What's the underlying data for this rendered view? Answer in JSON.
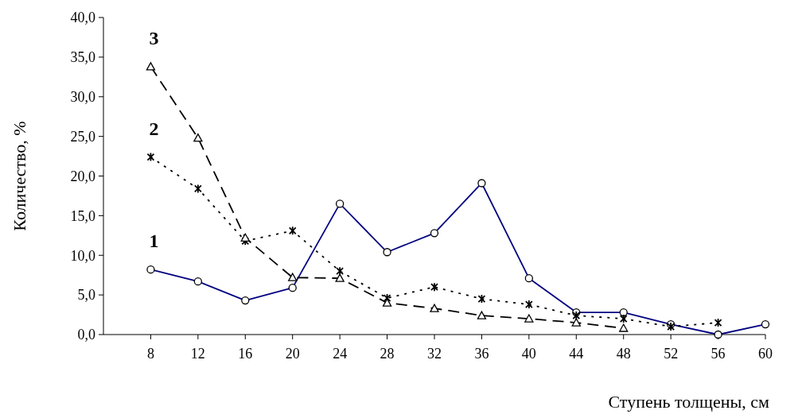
{
  "chart_data": {
    "type": "line",
    "xlabel": "Ступень толщены, см",
    "ylabel": "Количество, %",
    "x": [
      8,
      12,
      16,
      20,
      24,
      28,
      32,
      36,
      40,
      44,
      48,
      52,
      56,
      60
    ],
    "xlim": [
      4,
      60
    ],
    "xticks": [
      8,
      12,
      16,
      20,
      24,
      28,
      32,
      36,
      40,
      44,
      48,
      52,
      56,
      60
    ],
    "ylim": [
      0,
      40
    ],
    "yticks": [
      {
        "value": 0,
        "label": "0,0"
      },
      {
        "value": 5,
        "label": "5,0"
      },
      {
        "value": 10,
        "label": "10,0"
      },
      {
        "value": 15,
        "label": "15,0"
      },
      {
        "value": 20,
        "label": "20,0"
      },
      {
        "value": 25,
        "label": "25,0"
      },
      {
        "value": 30,
        "label": "30,0"
      },
      {
        "value": 35,
        "label": "35,0"
      },
      {
        "value": 40,
        "label": "40,0"
      }
    ],
    "grid": false,
    "series": [
      {
        "name": "1",
        "color": "#000080",
        "marker": "circle",
        "line_style": "solid",
        "values": [
          8.2,
          6.7,
          4.3,
          5.9,
          16.5,
          10.4,
          12.8,
          19.1,
          7.1,
          2.8,
          2.8,
          1.3,
          0,
          1.3
        ]
      },
      {
        "name": "2",
        "color": "#000000",
        "marker": "cross",
        "line_style": "dotted",
        "values": [
          22.4,
          18.4,
          11.8,
          13.1,
          8.0,
          4.6,
          6.0,
          4.5,
          3.8,
          2.4,
          2.0,
          1.0,
          1.5,
          null
        ]
      },
      {
        "name": "3",
        "color": "#000000",
        "marker": "triangle",
        "line_style": "dashed",
        "values": [
          33.8,
          24.8,
          12.2,
          7.2,
          7.1,
          4.0,
          3.3,
          2.4,
          2.0,
          1.5,
          0.8,
          null,
          null,
          null
        ]
      }
    ]
  }
}
